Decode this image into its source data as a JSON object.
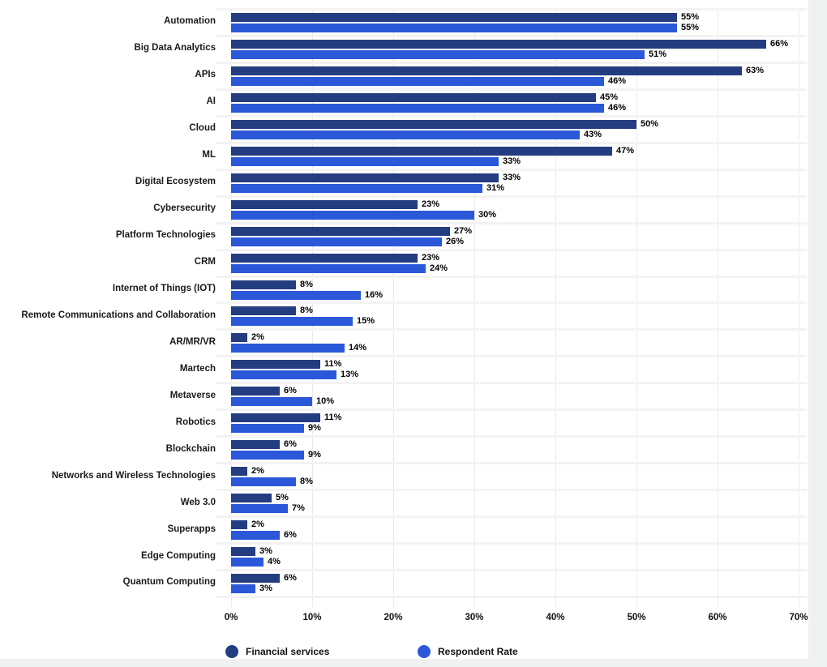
{
  "page": {
    "background_color": "#f0f1f1",
    "card_color": "#ffffff"
  },
  "chart_data": {
    "type": "bar",
    "orientation": "horizontal",
    "categories": [
      "Automation",
      "Big Data Analytics",
      "APIs",
      "AI",
      "Cloud",
      "ML",
      "Digital Ecosystem",
      "Cybersecurity",
      "Platform Technologies",
      "CRM",
      "Internet of Things (IOT)",
      "Remote Communications and Collaboration",
      "AR/MR/VR",
      "Martech",
      "Metaverse",
      "Robotics",
      "Blockchain",
      "Networks and Wireless Technologies",
      "Web 3.0",
      "Superapps",
      "Edge Computing",
      "Quantum Computing"
    ],
    "series": [
      {
        "name": "Financial services",
        "color": "#243c80",
        "values": [
          55,
          66,
          63,
          45,
          50,
          47,
          33,
          23,
          27,
          23,
          8,
          8,
          2,
          11,
          6,
          11,
          6,
          2,
          5,
          2,
          3,
          6
        ]
      },
      {
        "name": "Respondent Rate",
        "color": "#2b57d9",
        "values": [
          55,
          51,
          46,
          46,
          43,
          33,
          31,
          30,
          26,
          24,
          16,
          15,
          14,
          13,
          10,
          9,
          9,
          8,
          7,
          6,
          4,
          3
        ]
      }
    ],
    "x_ticks": [
      "0%",
      "10%",
      "20%",
      "30%",
      "40%",
      "50%",
      "60%",
      "70%"
    ],
    "xlim": [
      0,
      70
    ],
    "value_suffix": "%",
    "bar_value_labels": true,
    "grid": "vertical",
    "legend_position": "bottom",
    "gridline_color": "#eaeaea",
    "separator_color": "#f3f3f3"
  }
}
